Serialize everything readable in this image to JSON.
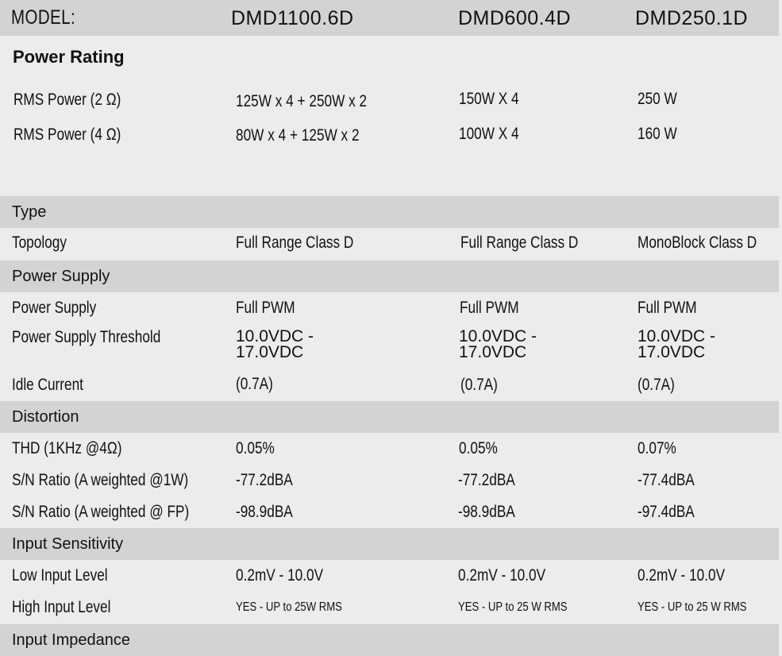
{
  "header": {
    "model_label": "MODEL:",
    "models": [
      "DMD1100.6D",
      "DMD600.4D",
      "DMD250.1D"
    ]
  },
  "power_rating": {
    "title": "Power Rating",
    "rows": [
      {
        "label": "RMS Power (2 Ω)",
        "values": [
          "125W x 4 + 250W x 2",
          "150W X 4",
          "250 W"
        ]
      },
      {
        "label": "RMS Power (4 Ω)",
        "values": [
          "80W x 4 + 125W x 2",
          "100W X 4",
          "160 W"
        ]
      }
    ]
  },
  "sections": {
    "type": {
      "title": "Type",
      "topology": {
        "label": "Topology",
        "values": [
          "Full Range Class D",
          "Full Range Class D",
          "MonoBlock Class D"
        ]
      }
    },
    "power_supply": {
      "title": "Power Supply",
      "supply": {
        "label": "Power Supply",
        "values": [
          "Full PWM",
          "Full PWM",
          "Full PWM"
        ]
      },
      "threshold": {
        "label": "Power Supply Threshold",
        "values": [
          "10.0VDC - 17.0VDC",
          "10.0VDC - 17.0VDC",
          "10.0VDC - 17.0VDC"
        ]
      },
      "idle": {
        "label": "Idle Current",
        "values": [
          "(0.7A)",
          "(0.7A)",
          "(0.7A)"
        ]
      }
    },
    "distortion": {
      "title": "Distortion",
      "thd": {
        "label": "THD (1KHz @4Ω)",
        "values": [
          "0.05%",
          "0.05%",
          "0.07%"
        ]
      },
      "sn1": {
        "label": "S/N Ratio (A weighted @1W)",
        "values": [
          "-77.2dBA",
          "-77.2dBA",
          "-77.4dBA"
        ]
      },
      "sn2": {
        "label": "S/N Ratio (A weighted @ FP)",
        "values": [
          "-98.9dBA",
          "-98.9dBA",
          "-97.4dBA"
        ]
      }
    },
    "input_sensitivity": {
      "title": "Input Sensitivity",
      "low": {
        "label": "Low Input Level",
        "values": [
          "0.2mV - 10.0V",
          "0.2mV - 10.0V",
          "0.2mV - 10.0V"
        ]
      },
      "high": {
        "label": "High Input Level",
        "values": [
          "YES - UP to 25W RMS",
          "YES - UP to 25 W RMS",
          "YES - UP to 25 W RMS"
        ]
      }
    },
    "input_impedance": {
      "title": "Input Impedance"
    }
  }
}
